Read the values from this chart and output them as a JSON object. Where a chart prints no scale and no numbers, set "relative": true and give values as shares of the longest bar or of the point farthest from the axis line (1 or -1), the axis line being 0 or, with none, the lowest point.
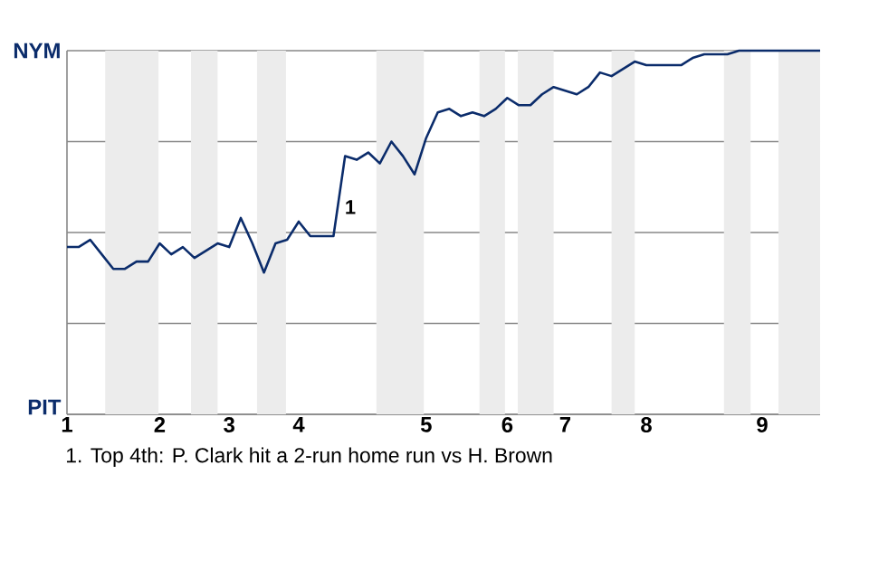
{
  "chart_data": {
    "type": "line",
    "relative": true,
    "categories": [
      "1",
      null,
      null,
      null,
      null,
      null,
      null,
      null,
      "2",
      null,
      null,
      null,
      null,
      null,
      "3",
      null,
      null,
      null,
      null,
      null,
      "4",
      null,
      null,
      null,
      null,
      null,
      null,
      null,
      null,
      null,
      null,
      "5",
      null,
      null,
      null,
      null,
      null,
      null,
      "6",
      null,
      null,
      null,
      null,
      "7",
      null,
      null,
      null,
      null,
      null,
      null,
      "8",
      null,
      null,
      null,
      null,
      null,
      null,
      null,
      null,
      null,
      "9",
      null,
      null,
      null,
      null,
      null
    ],
    "grid": "y",
    "marker": "none",
    "line_style": "solid",
    "series": [
      {
        "color": "#0b2c6b",
        "values": [
          0.46,
          0.46,
          0.48,
          0.44,
          0.4,
          0.4,
          0.42,
          0.42,
          0.47,
          0.44,
          0.46,
          0.43,
          0.45,
          0.47,
          0.46,
          0.54,
          0.47,
          0.39,
          0.47,
          0.48,
          0.53,
          0.49,
          0.49,
          0.49,
          0.71,
          0.7,
          0.72,
          0.69,
          0.75,
          0.71,
          0.66,
          0.76,
          0.83,
          0.84,
          0.82,
          0.83,
          0.82,
          0.84,
          0.87,
          0.85,
          0.85,
          0.88,
          0.9,
          0.89,
          0.88,
          0.9,
          0.94,
          0.93,
          0.95,
          0.97,
          0.96,
          0.96,
          0.96,
          0.96,
          0.98,
          0.99,
          0.99,
          0.99,
          1,
          1,
          1,
          1,
          1,
          1,
          1,
          1
        ]
      }
    ],
    "annotations": [
      "1",
      "NYM",
      "PIT",
      "1. Top 4th: P. Clark hit a 2-run home run vs H. Brown"
    ]
  }
}
